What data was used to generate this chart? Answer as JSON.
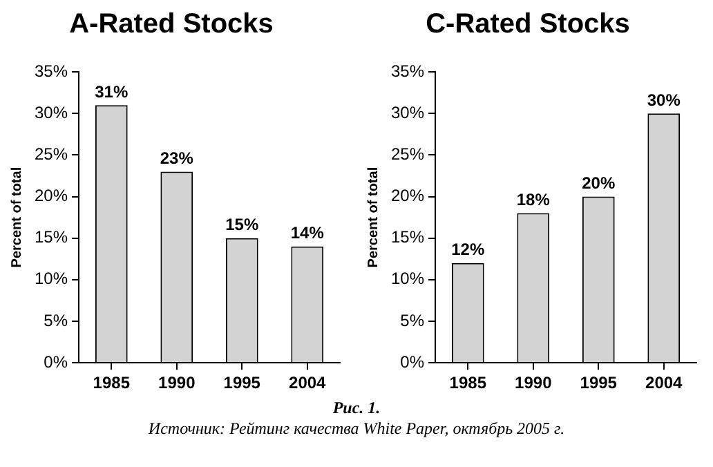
{
  "chart_data": [
    {
      "type": "bar",
      "title": "A-Rated Stocks",
      "ylabel": "Percent of total",
      "categories": [
        "1985",
        "1990",
        "1995",
        "2004"
      ],
      "values": [
        31,
        23,
        15,
        14
      ],
      "value_labels": [
        "31%",
        "23%",
        "15%",
        "14%"
      ],
      "color": "#d3d3d3",
      "ylim": [
        0,
        35
      ],
      "yticks": [
        {
          "value": 0,
          "label": "0%"
        },
        {
          "value": 5,
          "label": "5%"
        },
        {
          "value": 10,
          "label": "10%"
        },
        {
          "value": 15,
          "label": "15%"
        },
        {
          "value": 20,
          "label": "20%"
        },
        {
          "value": 25,
          "label": "25%"
        },
        {
          "value": 30,
          "label": "30%"
        },
        {
          "value": 35,
          "label": "35%"
        }
      ],
      "grid": false,
      "legend": false,
      "annotations": [
        "Рис. 1.",
        "Источник: Рейтинг качества White Paper, октябрь 2005 г."
      ]
    },
    {
      "type": "bar",
      "title": "C-Rated Stocks",
      "ylabel": "Percent of total",
      "categories": [
        "1985",
        "1990",
        "1995",
        "2004"
      ],
      "values": [
        12,
        18,
        20,
        30
      ],
      "value_labels": [
        "12%",
        "18%",
        "20%",
        "30%"
      ],
      "color": "#d3d3d3",
      "ylim": [
        0,
        35
      ],
      "yticks": [
        {
          "value": 0,
          "label": "0%"
        },
        {
          "value": 5,
          "label": "5%"
        },
        {
          "value": 10,
          "label": "10%"
        },
        {
          "value": 15,
          "label": "15%"
        },
        {
          "value": 20,
          "label": "20%"
        },
        {
          "value": 25,
          "label": "25%"
        },
        {
          "value": 30,
          "label": "30%"
        },
        {
          "value": 35,
          "label": "35%"
        }
      ],
      "grid": false,
      "legend": false
    }
  ]
}
